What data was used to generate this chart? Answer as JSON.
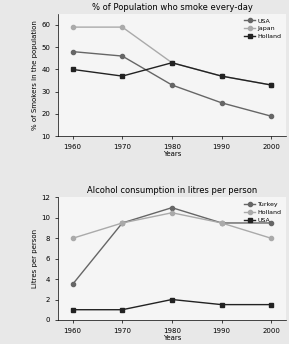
{
  "years": [
    1960,
    1970,
    1980,
    1990,
    2000
  ],
  "smoking_title": "% of Population who smoke every-day",
  "smoking_ylabel": "% of Smokers in the population",
  "smoking_xlabel": "Years",
  "smoking_ylim": [
    10,
    65
  ],
  "smoking_yticks": [
    10,
    20,
    30,
    40,
    50,
    60
  ],
  "smoking_series": {
    "USA": {
      "values": [
        48,
        46,
        33,
        25,
        19
      ],
      "marker": "o",
      "color": "#666666",
      "linestyle": "-",
      "markersize": 3
    },
    "Japan": {
      "values": [
        59,
        59,
        43,
        37,
        33
      ],
      "marker": "o",
      "color": "#aaaaaa",
      "linestyle": "-",
      "markersize": 3
    },
    "Holland": {
      "values": [
        40,
        37,
        43,
        37,
        33
      ],
      "marker": "s",
      "color": "#222222",
      "linestyle": "-",
      "markersize": 3
    }
  },
  "alcohol_title": "Alcohol consumption in litres per person",
  "alcohol_ylabel": "Litres per person",
  "alcohol_xlabel": "Years",
  "alcohol_ylim": [
    0,
    12
  ],
  "alcohol_yticks": [
    0,
    2,
    4,
    6,
    8,
    10,
    12
  ],
  "alcohol_series": {
    "Turkey": {
      "values": [
        3.5,
        9.5,
        11.0,
        9.5,
        9.5
      ],
      "marker": "o",
      "color": "#666666",
      "linestyle": "-",
      "markersize": 3
    },
    "Holland": {
      "values": [
        8.0,
        9.5,
        10.5,
        9.5,
        8.0
      ],
      "marker": "o",
      "color": "#aaaaaa",
      "linestyle": "-",
      "markersize": 3
    },
    "USA": {
      "values": [
        1.0,
        1.0,
        2.0,
        1.5,
        1.5
      ],
      "marker": "s",
      "color": "#222222",
      "linestyle": "-",
      "markersize": 3
    }
  },
  "bg_color": "#e8e8e8",
  "plot_bg": "#f5f5f5",
  "title_fontsize": 6,
  "label_fontsize": 5,
  "tick_fontsize": 5,
  "legend_fontsize": 4.5,
  "linewidth": 1.0
}
